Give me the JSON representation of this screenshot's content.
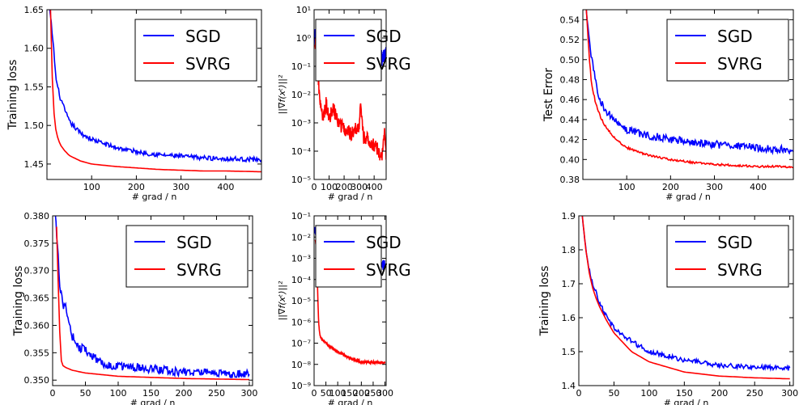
{
  "chart_data": [
    {
      "type": "line",
      "xlabel": "# grad / n",
      "ylabel": "Training loss",
      "xlim": [
        0,
        480
      ],
      "ylim": [
        1.43,
        1.65
      ],
      "yscale": "linear",
      "xticks": [
        100,
        200,
        300,
        400
      ],
      "xtick_labels": [
        "100",
        "200",
        "300",
        "400"
      ],
      "yticks": [
        1.45,
        1.5,
        1.55,
        1.6,
        1.65
      ],
      "ytick_labels": [
        "1.45",
        "1.50",
        "1.55",
        "1.60",
        "1.65"
      ],
      "legend_position": "top-right",
      "colors": {
        "SGD": "#0000ff",
        "SVRG": "#ff0000"
      },
      "series": [
        {
          "name": "SGD",
          "noise": 0.003,
          "x": [
            6,
            10,
            15,
            20,
            30,
            40,
            50,
            75,
            100,
            150,
            200,
            250,
            300,
            350,
            400,
            450,
            480
          ],
          "values": [
            1.65,
            1.63,
            1.6,
            1.56,
            1.535,
            1.52,
            1.505,
            1.49,
            1.482,
            1.472,
            1.466,
            1.462,
            1.46,
            1.458,
            1.457,
            1.456,
            1.456
          ]
        },
        {
          "name": "SVRG",
          "x": [
            8,
            10,
            12,
            15,
            20,
            25,
            30,
            40,
            50,
            75,
            100,
            150,
            200,
            250,
            300,
            350,
            400,
            480
          ],
          "values": [
            1.65,
            1.6,
            1.56,
            1.52,
            1.494,
            1.482,
            1.475,
            1.467,
            1.461,
            1.454,
            1.45,
            1.447,
            1.445,
            1.443,
            1.442,
            1.441,
            1.441,
            1.44
          ]
        }
      ]
    },
    {
      "type": "line",
      "xlabel": "# grad / n",
      "ylabel": "||∇f(xᵗ)||²",
      "xlim": [
        0,
        480
      ],
      "ylim": [
        -5,
        1
      ],
      "yscale": "log10",
      "xticks": [
        0,
        100,
        200,
        300,
        400
      ],
      "xtick_labels": [
        "0",
        "100",
        "200",
        "300",
        "400"
      ],
      "yticks": [
        -5,
        -4,
        -3,
        -2,
        -1,
        0,
        1
      ],
      "ytick_labels": [
        "10⁻⁵",
        "10⁻⁴",
        "10⁻³",
        "10⁻²",
        "10⁻¹",
        "10⁰",
        "10¹"
      ],
      "legend_position": "top-right",
      "colors": {
        "SGD": "#0000ff",
        "SVRG": "#ff0000"
      },
      "series": [
        {
          "name": "SGD",
          "noise": 0.3,
          "x": [
            0,
            20,
            50,
            100,
            150,
            200,
            250,
            300,
            350,
            400,
            450,
            480
          ],
          "values": [
            0.0,
            0.1,
            -0.2,
            -0.3,
            -0.4,
            -0.3,
            -0.5,
            -0.4,
            -0.5,
            -0.6,
            -0.7,
            -0.5
          ]
        },
        {
          "name": "SVRG",
          "noise": 0.25,
          "x": [
            5,
            15,
            25,
            35,
            45,
            60,
            80,
            100,
            130,
            160,
            200,
            250,
            300,
            310,
            330,
            360,
            400,
            430,
            450,
            470,
            480
          ],
          "values": [
            -0.1,
            -0.3,
            -1.2,
            -2.0,
            -2.5,
            -2.9,
            -2.3,
            -2.8,
            -2.5,
            -3.0,
            -3.2,
            -3.4,
            -3.1,
            -2.3,
            -3.5,
            -3.6,
            -3.8,
            -4.0,
            -4.3,
            -3.2,
            -4.2
          ]
        }
      ]
    },
    {
      "type": "line",
      "xlabel": "# grad / n",
      "ylabel": "Test Error",
      "xlim": [
        0,
        480
      ],
      "ylim": [
        0.38,
        0.55
      ],
      "yscale": "linear",
      "xticks": [
        100,
        200,
        300,
        400
      ],
      "xtick_labels": [
        "100",
        "200",
        "300",
        "400"
      ],
      "yticks": [
        0.38,
        0.4,
        0.42,
        0.44,
        0.46,
        0.48,
        0.5,
        0.52,
        0.54
      ],
      "ytick_labels": [
        "0.38",
        "0.40",
        "0.42",
        "0.44",
        "0.46",
        "0.48",
        "0.50",
        "0.52",
        "0.54"
      ],
      "legend_position": "top-right",
      "colors": {
        "SGD": "#0000ff",
        "SVRG": "#ff0000"
      },
      "series": [
        {
          "name": "SGD",
          "noise": 0.004,
          "x": [
            8,
            15,
            20,
            30,
            40,
            50,
            75,
            100,
            150,
            200,
            250,
            300,
            350,
            400,
            450,
            480
          ],
          "values": [
            0.55,
            0.52,
            0.5,
            0.475,
            0.46,
            0.45,
            0.438,
            0.43,
            0.424,
            0.42,
            0.417,
            0.415,
            0.413,
            0.412,
            0.41,
            0.408
          ]
        },
        {
          "name": "SVRG",
          "noise": 0.001,
          "x": [
            8,
            12,
            15,
            20,
            30,
            40,
            50,
            75,
            100,
            150,
            200,
            250,
            300,
            350,
            400,
            450,
            480
          ],
          "values": [
            0.55,
            0.52,
            0.5,
            0.475,
            0.455,
            0.443,
            0.434,
            0.42,
            0.412,
            0.404,
            0.4,
            0.397,
            0.395,
            0.394,
            0.393,
            0.393,
            0.392
          ]
        }
      ]
    },
    {
      "type": "line",
      "xlabel": "# grad / n",
      "ylabel": "Training loss",
      "xlim": [
        0,
        305
      ],
      "ylim": [
        0.349,
        0.38
      ],
      "yscale": "linear",
      "xticks": [
        0,
        50,
        100,
        150,
        200,
        250,
        300
      ],
      "xtick_labels": [
        "0",
        "50",
        "100",
        "150",
        "200",
        "250",
        "300"
      ],
      "yticks": [
        0.35,
        0.355,
        0.36,
        0.365,
        0.37,
        0.375,
        0.38
      ],
      "ytick_labels": [
        "0.350",
        "0.355",
        "0.360",
        "0.365",
        "0.370",
        "0.375",
        "0.380"
      ],
      "legend_position": "top-right",
      "colors": {
        "SGD": "#0000ff",
        "SVRG": "#ff0000"
      },
      "series": [
        {
          "name": "SGD",
          "noise": 0.0008,
          "x": [
            4,
            8,
            10,
            13,
            16,
            20,
            25,
            30,
            40,
            50,
            75,
            100,
            150,
            200,
            250,
            300
          ],
          "values": [
            0.38,
            0.374,
            0.368,
            0.366,
            0.363,
            0.364,
            0.36,
            0.358,
            0.356,
            0.3555,
            0.353,
            0.3525,
            0.352,
            0.3515,
            0.3512,
            0.351
          ]
        },
        {
          "name": "SVRG",
          "x": [
            6,
            8,
            10,
            12,
            14,
            20,
            30,
            50,
            75,
            100,
            150,
            200,
            250,
            300
          ],
          "values": [
            0.378,
            0.37,
            0.362,
            0.355,
            0.3528,
            0.3523,
            0.3518,
            0.3513,
            0.351,
            0.3507,
            0.3505,
            0.3503,
            0.3502,
            0.3501
          ]
        }
      ]
    },
    {
      "type": "line",
      "xlabel": "# grad / n",
      "ylabel": "||∇f(xᵗ)||²",
      "xlim": [
        0,
        305
      ],
      "ylim": [
        -9,
        -1
      ],
      "yscale": "log10",
      "xticks": [
        0,
        50,
        100,
        150,
        200,
        250,
        300
      ],
      "xtick_labels": [
        "0",
        "50",
        "100",
        "150",
        "200",
        "250",
        "300"
      ],
      "yticks": [
        -9,
        -8,
        -7,
        -6,
        -5,
        -4,
        -3,
        -2,
        -1
      ],
      "ytick_labels": [
        "10⁻⁹",
        "10⁻⁸",
        "10⁻⁷",
        "10⁻⁶",
        "10⁻⁵",
        "10⁻⁴",
        "10⁻³",
        "10⁻²",
        "10⁻¹"
      ],
      "legend_position": "top-right",
      "colors": {
        "SGD": "#0000ff",
        "SVRG": "#ff0000"
      },
      "series": [
        {
          "name": "SGD",
          "noise": 0.25,
          "x": [
            0,
            20,
            50,
            100,
            150,
            200,
            250,
            300
          ],
          "values": [
            -1.6,
            -2.2,
            -2.6,
            -3.0,
            -3.2,
            -3.4,
            -3.5,
            -3.3
          ]
        },
        {
          "name": "SVRG",
          "noise": 0.06,
          "x": [
            5,
            10,
            13,
            16,
            20,
            25,
            30,
            40,
            60,
            100,
            150,
            200,
            250,
            300
          ],
          "values": [
            -2.1,
            -2.5,
            -3.5,
            -5.0,
            -6.2,
            -6.6,
            -6.8,
            -6.9,
            -7.1,
            -7.4,
            -7.7,
            -7.9,
            -7.9,
            -7.95
          ]
        }
      ]
    },
    {
      "type": "line",
      "xlabel": "# grad / n",
      "ylabel": "Training loss",
      "xlim": [
        0,
        305
      ],
      "ylim": [
        1.4,
        1.9
      ],
      "yscale": "linear",
      "xticks": [
        0,
        50,
        100,
        150,
        200,
        250,
        300
      ],
      "xtick_labels": [
        "0",
        "50",
        "100",
        "150",
        "200",
        "250",
        "300"
      ],
      "yticks": [
        1.4,
        1.5,
        1.6,
        1.7,
        1.8,
        1.9
      ],
      "ytick_labels": [
        "1.4",
        "1.5",
        "1.6",
        "1.7",
        "1.8",
        "1.9"
      ],
      "legend_position": "top-right",
      "colors": {
        "SGD": "#0000ff",
        "SVRG": "#ff0000"
      },
      "series": [
        {
          "name": "SGD",
          "noise": 0.007,
          "x": [
            5,
            10,
            15,
            20,
            25,
            30,
            40,
            50,
            75,
            100,
            150,
            200,
            250,
            300
          ],
          "values": [
            1.9,
            1.8,
            1.74,
            1.7,
            1.67,
            1.64,
            1.6,
            1.57,
            1.53,
            1.5,
            1.475,
            1.46,
            1.455,
            1.45
          ]
        },
        {
          "name": "SVRG",
          "x": [
            5,
            10,
            15,
            20,
            25,
            30,
            40,
            50,
            75,
            100,
            150,
            200,
            250,
            300
          ],
          "values": [
            1.9,
            1.8,
            1.73,
            1.685,
            1.655,
            1.63,
            1.59,
            1.555,
            1.5,
            1.47,
            1.44,
            1.428,
            1.423,
            1.42
          ]
        }
      ]
    }
  ]
}
